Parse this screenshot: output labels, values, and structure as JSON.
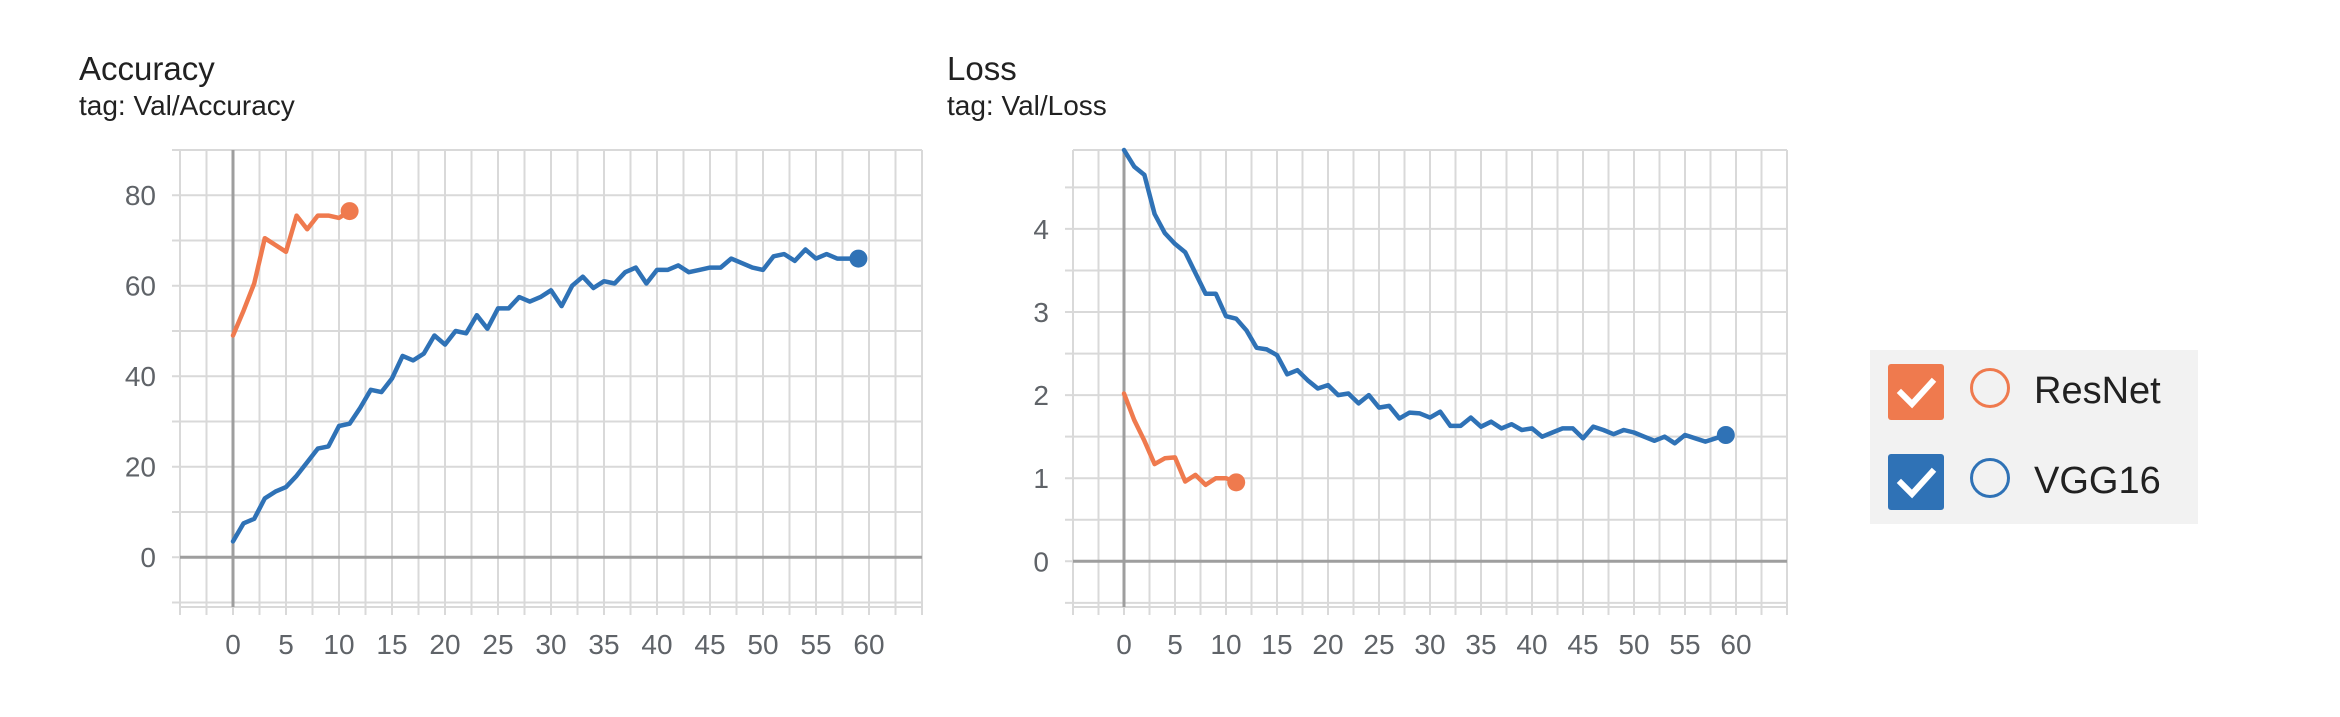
{
  "colors": {
    "resnet": "#ef7a4e",
    "vgg16": "#2f72b6",
    "grid": "#d9d9d9",
    "axis": "#9e9e9e",
    "tick": "#5f6368"
  },
  "legend": {
    "items": [
      {
        "label": "ResNet",
        "color": "#ef7a4e",
        "checked": true,
        "icon": "check-icon"
      },
      {
        "label": "VGG16",
        "color": "#2f72b6",
        "checked": true,
        "icon": "check-icon"
      }
    ]
  },
  "chart_data": [
    {
      "type": "line",
      "title": "Accuracy",
      "subtitle": "tag: Val/Accuracy",
      "xlim": [
        -5,
        65
      ],
      "ylim": [
        -11,
        90
      ],
      "xticks": [
        0,
        5,
        10,
        15,
        20,
        25,
        30,
        35,
        40,
        45,
        50,
        55,
        60
      ],
      "yticks": [
        0,
        20,
        40,
        60,
        80
      ],
      "grid": true,
      "series": [
        {
          "name": "ResNet",
          "color": "#ef7a4e",
          "x": [
            0,
            1,
            2,
            3,
            4,
            5,
            6,
            7,
            8,
            9,
            10,
            11
          ],
          "y": [
            49,
            54.5,
            60.5,
            70.5,
            69,
            67.5,
            75.5,
            72.5,
            75.5,
            75.5,
            75,
            76.5
          ]
        },
        {
          "name": "VGG16",
          "color": "#2f72b6",
          "x": [
            0,
            1,
            2,
            3,
            4,
            5,
            6,
            7,
            8,
            9,
            10,
            11,
            12,
            13,
            14,
            15,
            16,
            17,
            18,
            19,
            20,
            21,
            22,
            23,
            24,
            25,
            26,
            27,
            28,
            29,
            30,
            31,
            32,
            33,
            34,
            35,
            36,
            37,
            38,
            39,
            40,
            41,
            42,
            43,
            44,
            45,
            46,
            47,
            48,
            49,
            50,
            51,
            52,
            53,
            54,
            55,
            56,
            57,
            58,
            59
          ],
          "y": [
            3.5,
            7.5,
            8.5,
            13,
            14.5,
            15.5,
            18,
            21,
            24,
            24.5,
            29,
            29.5,
            33,
            37,
            36.5,
            39.5,
            44.5,
            43.5,
            45,
            49,
            47,
            50,
            49.5,
            53.5,
            50.5,
            55,
            55,
            57.5,
            56.5,
            57.5,
            59,
            55.5,
            60,
            62,
            59.5,
            61,
            60.5,
            63,
            64,
            60.5,
            63.5,
            63.5,
            64.5,
            63,
            63.5,
            64,
            64,
            66,
            65,
            64,
            63.5,
            66.5,
            67,
            65.5,
            68,
            66,
            67,
            66,
            66,
            66
          ]
        }
      ]
    },
    {
      "type": "line",
      "title": "Loss",
      "subtitle": "tag: Val/Loss",
      "xlim": [
        -5,
        65
      ],
      "ylim": [
        -0.55,
        4.95
      ],
      "xticks": [
        0,
        5,
        10,
        15,
        20,
        25,
        30,
        35,
        40,
        45,
        50,
        55,
        60
      ],
      "yticks": [
        0,
        1,
        2,
        3,
        4
      ],
      "grid": true,
      "series": [
        {
          "name": "ResNet",
          "color": "#ef7a4e",
          "x": [
            0,
            1,
            2,
            3,
            4,
            5,
            6,
            7,
            8,
            9,
            10,
            11
          ],
          "y": [
            2.02,
            1.7,
            1.45,
            1.17,
            1.24,
            1.25,
            0.96,
            1.04,
            0.92,
            1.0,
            1.0,
            0.95
          ]
        },
        {
          "name": "VGG16",
          "color": "#2f72b6",
          "x": [
            0,
            1,
            2,
            3,
            4,
            5,
            6,
            7,
            8,
            9,
            10,
            11,
            12,
            13,
            14,
            15,
            16,
            17,
            18,
            19,
            20,
            21,
            22,
            23,
            24,
            25,
            26,
            27,
            28,
            29,
            30,
            31,
            32,
            33,
            34,
            35,
            36,
            37,
            38,
            39,
            40,
            41,
            42,
            43,
            44,
            45,
            46,
            47,
            48,
            49,
            50,
            51,
            52,
            53,
            54,
            55,
            56,
            57,
            58,
            59
          ],
          "y": [
            4.95,
            4.75,
            4.65,
            4.18,
            3.95,
            3.82,
            3.72,
            3.47,
            3.22,
            3.22,
            2.95,
            2.92,
            2.78,
            2.57,
            2.55,
            2.48,
            2.25,
            2.3,
            2.18,
            2.08,
            2.12,
            2.0,
            2.02,
            1.9,
            2.0,
            1.85,
            1.87,
            1.72,
            1.79,
            1.78,
            1.73,
            1.8,
            1.63,
            1.63,
            1.73,
            1.62,
            1.68,
            1.6,
            1.65,
            1.58,
            1.6,
            1.5,
            1.55,
            1.6,
            1.6,
            1.48,
            1.62,
            1.58,
            1.53,
            1.58,
            1.55,
            1.5,
            1.45,
            1.5,
            1.42,
            1.52,
            1.48,
            1.44,
            1.48,
            1.52
          ]
        }
      ]
    }
  ]
}
